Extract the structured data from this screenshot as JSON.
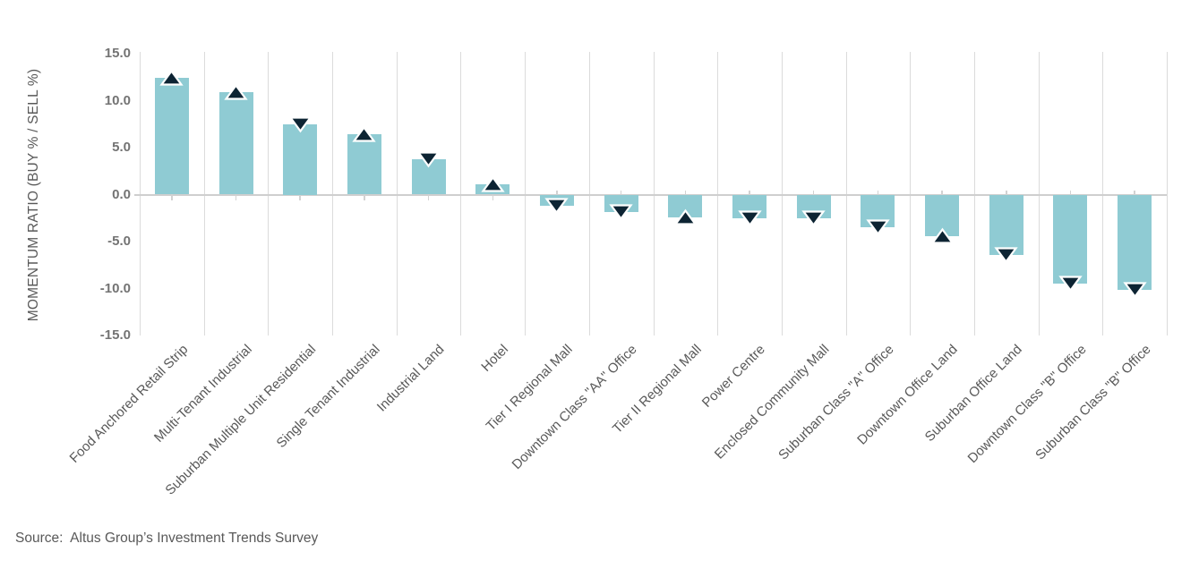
{
  "chart_data": {
    "type": "bar",
    "title": "",
    "xlabel": "",
    "ylabel": "MOMENTUM RATIO (BUY % / SELL %)",
    "ylim": [
      -15.0,
      15.0
    ],
    "grid": "vertical-only",
    "legend": "none",
    "ytick_labels": [
      "15.0",
      "10.0",
      "5.0",
      "0.0",
      "-5.0",
      "-10.0",
      "-15.0"
    ],
    "yticks": [
      15.0,
      10.0,
      5.0,
      0.0,
      -5.0,
      -10.0,
      -15.0
    ],
    "categories": [
      "Food Anchored Retail Strip",
      "Multi-Tenant Industrial",
      "Suburban Multiple Unit Residential",
      "Single Tenant Industrial",
      "Industrial Land",
      "Hotel",
      "Tier I Regional Mall",
      "Downtown Class \"AA\" Office",
      "Tier II Regional Mall",
      "Power Centre",
      "Enclosed Community Mall",
      "Suburban Class \"A\" Office",
      "Downtown Office Land",
      "Suburban Office Land",
      "Downtown Class \"B\" Office",
      "Suburban Class \"B\" Office"
    ],
    "values": [
      12.4,
      10.9,
      7.5,
      6.4,
      3.8,
      1.1,
      -1.2,
      -1.9,
      -2.4,
      -2.5,
      -2.5,
      -3.5,
      -4.4,
      -6.4,
      -9.5,
      -10.1
    ],
    "marker_directions": [
      "up",
      "up",
      "down",
      "up",
      "down",
      "up",
      "down",
      "down",
      "up",
      "down",
      "down",
      "down",
      "up",
      "down",
      "down",
      "down"
    ],
    "colors": {
      "bar_fill": "#8FCBD3",
      "marker_fill": "#0D2433",
      "marker_stroke": "#FFFFFF",
      "gridline": "#DBDBDB",
      "zero_axis": "#CFCFCF",
      "category_tick": "#D2D2D2",
      "ytick_text": "#737373",
      "label_text": "#595959"
    }
  },
  "source_note": "Source:  Altus Group’s Investment Trends Survey"
}
